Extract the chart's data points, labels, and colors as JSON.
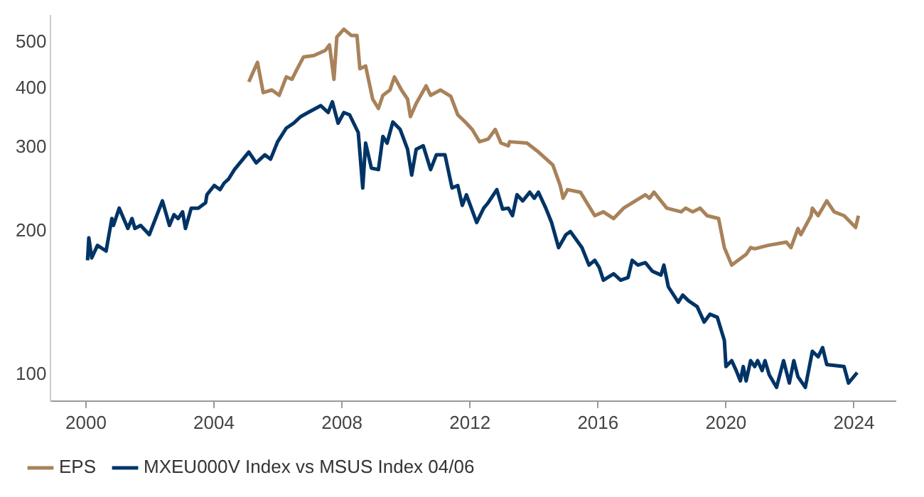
{
  "chart_data": {
    "type": "line",
    "log": "y",
    "grid": false,
    "legend": "bottom",
    "marker": "none",
    "line_style": "solid",
    "xlim": [
      1998.9,
      2025.3
    ],
    "xticks": [
      2000,
      2004,
      2008,
      2012,
      2016,
      2020,
      2024
    ],
    "ylim": [
      88,
      570
    ],
    "yticks": [
      100,
      200,
      300,
      400,
      500
    ],
    "series": [
      {
        "name": "EPS",
        "color": "#a8825a",
        "x": [
          2005.09,
          2005.36,
          2005.54,
          2005.81,
          2006.04,
          2006.26,
          2006.44,
          2006.58,
          2006.8,
          2007.12,
          2007.48,
          2007.61,
          2007.75,
          2007.84,
          2008.06,
          2008.29,
          2008.47,
          2008.56,
          2008.74,
          2008.96,
          2009.14,
          2009.28,
          2009.5,
          2009.64,
          2009.86,
          2010.05,
          2010.14,
          2010.32,
          2010.63,
          2010.77,
          2011.08,
          2011.4,
          2011.62,
          2011.85,
          2012.07,
          2012.3,
          2012.57,
          2012.79,
          2012.97,
          2013.2,
          2013.24,
          2013.78,
          2014.14,
          2014.59,
          2014.82,
          2014.91,
          2015.05,
          2015.45,
          2015.9,
          2016.17,
          2016.49,
          2016.8,
          2017.48,
          2017.61,
          2017.75,
          2018.15,
          2018.6,
          2018.74,
          2018.96,
          2019.19,
          2019.41,
          2019.77,
          2019.95,
          2020.18,
          2020.63,
          2020.77,
          2020.9,
          2021.31,
          2021.89,
          2022.03,
          2022.25,
          2022.34,
          2022.66,
          2022.7,
          2022.88,
          2023.15,
          2023.38,
          2023.69,
          2024.05,
          2024.14
        ],
        "values": [
          413,
          454,
          392,
          397,
          387,
          423,
          418,
          437,
          466,
          469,
          481,
          494,
          418,
          513,
          533,
          517,
          517,
          440,
          446,
          380,
          363,
          387,
          397,
          423,
          397,
          380,
          349,
          372,
          405,
          387,
          397,
          385,
          352,
          340,
          328,
          309,
          313,
          328,
          307,
          303,
          309,
          307,
          294,
          276,
          250,
          235,
          245,
          242,
          216,
          220,
          213,
          224,
          239,
          235,
          242,
          224,
          220,
          224,
          220,
          224,
          216,
          213,
          185,
          170,
          179,
          185,
          184,
          187,
          190,
          185,
          203,
          197,
          216,
          224,
          216,
          232,
          220,
          216,
          204,
          216
        ]
      },
      {
        "name": "MXEU000V Index vs MSUS Index 04/06",
        "color": "#003466",
        "x": [
          2000.05,
          2000.09,
          2000.18,
          2000.36,
          2000.63,
          2000.81,
          2000.86,
          2001.04,
          2001.31,
          2001.44,
          2001.53,
          2001.71,
          2001.98,
          2002.39,
          2002.61,
          2002.75,
          2002.88,
          2003.02,
          2003.11,
          2003.29,
          2003.51,
          2003.74,
          2003.78,
          2004.01,
          2004.19,
          2004.32,
          2004.46,
          2004.64,
          2005.09,
          2005.32,
          2005.59,
          2005.77,
          2005.99,
          2006.26,
          2006.49,
          2006.71,
          2006.94,
          2007.34,
          2007.57,
          2007.7,
          2007.88,
          2008.06,
          2008.24,
          2008.51,
          2008.65,
          2008.74,
          2008.92,
          2009.14,
          2009.28,
          2009.41,
          2009.59,
          2009.82,
          2010.05,
          2010.18,
          2010.32,
          2010.54,
          2010.77,
          2010.95,
          2011.22,
          2011.44,
          2011.62,
          2011.76,
          2011.89,
          2012.21,
          2012.43,
          2012.57,
          2012.84,
          2013.02,
          2013.2,
          2013.33,
          2013.47,
          2013.65,
          2013.87,
          2014.01,
          2014.14,
          2014.37,
          2014.55,
          2014.77,
          2015.0,
          2015.14,
          2015.5,
          2015.72,
          2015.9,
          2016.04,
          2016.17,
          2016.49,
          2016.71,
          2016.94,
          2017.07,
          2017.25,
          2017.48,
          2017.7,
          2017.97,
          2018.06,
          2018.2,
          2018.51,
          2018.65,
          2018.83,
          2019.1,
          2019.32,
          2019.5,
          2019.73,
          2019.95,
          2020.0,
          2020.18,
          2020.32,
          2020.45,
          2020.54,
          2020.63,
          2020.77,
          2020.9,
          2020.99,
          2021.13,
          2021.22,
          2021.35,
          2021.58,
          2021.8,
          2021.98,
          2022.12,
          2022.25,
          2022.48,
          2022.7,
          2022.88,
          2023.02,
          2023.15,
          2023.69,
          2023.83,
          2024.1
        ],
        "values": [
          174,
          194,
          176,
          187,
          182,
          213,
          206,
          224,
          203,
          213,
          203,
          206,
          197,
          232,
          206,
          217,
          213,
          220,
          203,
          224,
          224,
          230,
          239,
          250,
          245,
          253,
          258,
          270,
          294,
          279,
          290,
          284,
          309,
          330,
          338,
          349,
          356,
          368,
          356,
          375,
          338,
          356,
          352,
          323,
          247,
          307,
          272,
          270,
          317,
          307,
          340,
          328,
          298,
          263,
          298,
          303,
          270,
          290,
          290,
          247,
          250,
          227,
          239,
          209,
          224,
          230,
          245,
          223,
          224,
          216,
          239,
          232,
          242,
          235,
          242,
          224,
          209,
          185,
          197,
          200,
          185,
          170,
          174,
          168,
          158,
          163,
          158,
          160,
          174,
          170,
          172,
          165,
          162,
          170,
          153,
          142,
          147,
          143,
          139,
          129,
          134,
          132,
          118,
          104,
          107,
          102,
          97,
          104,
          97,
          107,
          104,
          107,
          102,
          107,
          100,
          94,
          107,
          96,
          107,
          99,
          94,
          112,
          109,
          114,
          105,
          104,
          96,
          101
        ]
      }
    ]
  }
}
